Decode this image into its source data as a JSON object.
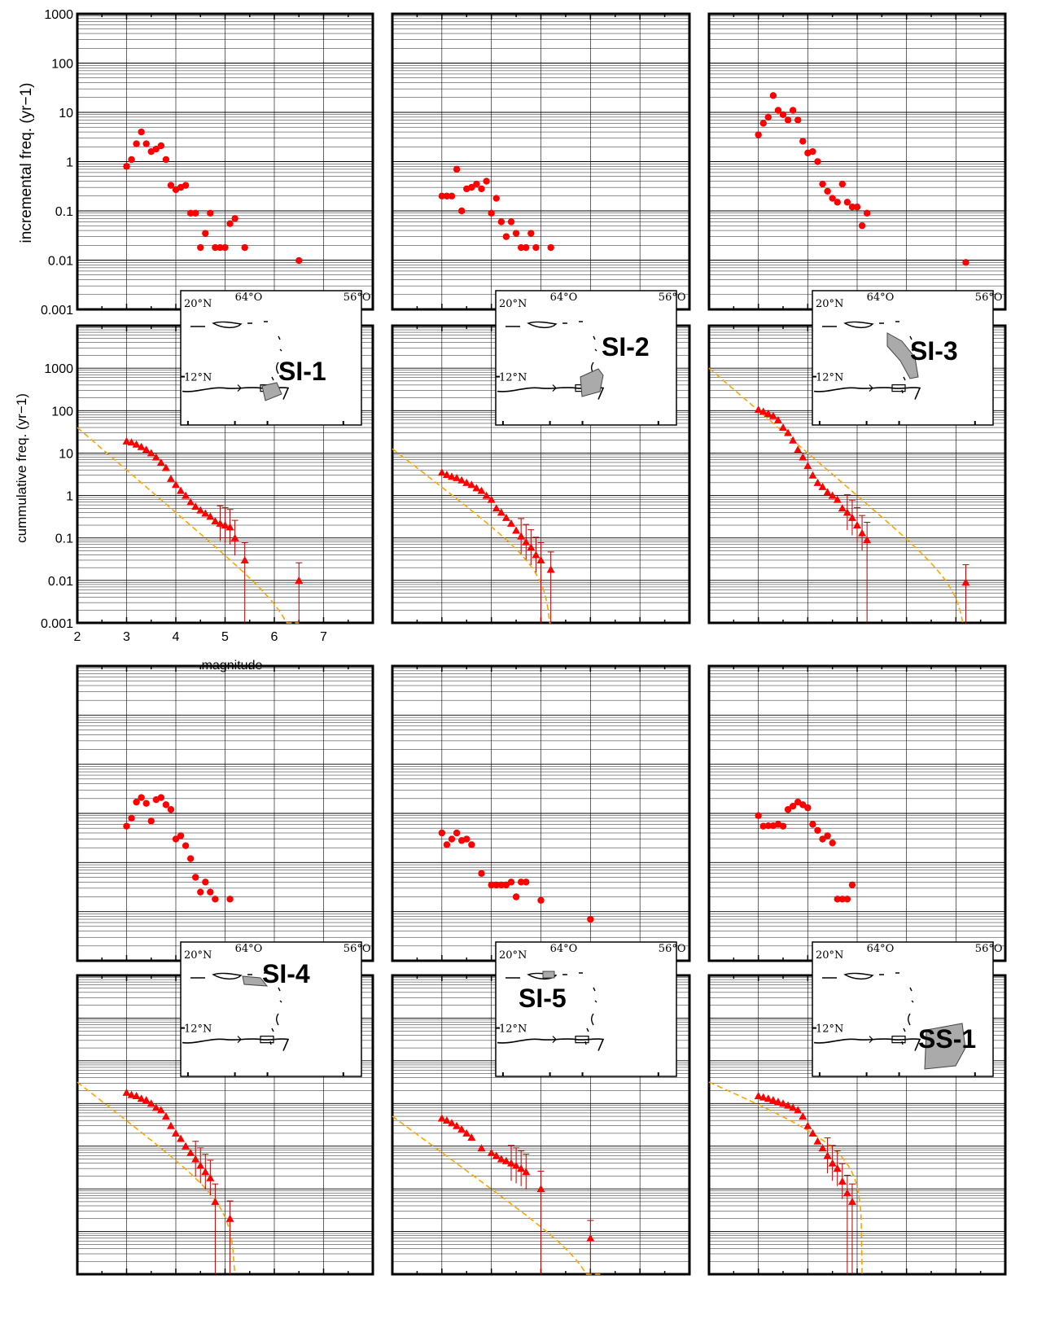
{
  "figure": {
    "ylabel_incremental": "incremental freq. (yr−1)",
    "ylabel_cumulative": "cummulative freq. (yr−1)",
    "xlabel": "magnitude"
  },
  "map_labels": {
    "lat_n": "20°N",
    "lat_s": "12°N",
    "lon_w": "64°O",
    "lon_e": "56°O"
  },
  "colors": {
    "points": "#ff0000",
    "fit": "#ffa500",
    "zone_fill": "#aaaaaa",
    "grid": "#000000"
  },
  "chart_data": [
    {
      "zone": "SI-1",
      "incremental": {
        "type": "scatter",
        "xlim": [
          2,
          8
        ],
        "ylim": [
          0.001,
          1000
        ],
        "yscale": "log",
        "yticklabels": [
          "1000",
          "100",
          "10",
          "1",
          "0.1",
          "0.01",
          "0.001"
        ],
        "x": [
          3.0,
          3.1,
          3.2,
          3.3,
          3.4,
          3.5,
          3.6,
          3.7,
          3.8,
          3.9,
          4.0,
          4.1,
          4.2,
          4.3,
          4.4,
          4.5,
          4.6,
          4.7,
          4.8,
          4.9,
          5.0,
          5.1,
          5.2,
          5.4,
          6.5
        ],
        "y": [
          0.8,
          1.1,
          2.3,
          4.0,
          2.3,
          1.6,
          1.8,
          2.1,
          1.1,
          0.33,
          0.27,
          0.3,
          0.33,
          0.09,
          0.09,
          0.018,
          0.035,
          0.09,
          0.018,
          0.018,
          0.018,
          0.055,
          0.07,
          0.018,
          0.0098
        ]
      },
      "cumulative": {
        "type": "scatter",
        "xlim": [
          2,
          8
        ],
        "ylim": [
          0.001,
          10000
        ],
        "yscale": "log",
        "xticklabels": [
          "2",
          "3",
          "4",
          "5",
          "6",
          "7"
        ],
        "yticklabels": [
          "1000",
          "100",
          "10",
          "1",
          "0.1",
          "0.01",
          "0.001"
        ],
        "x": [
          3.0,
          3.1,
          3.2,
          3.3,
          3.4,
          3.5,
          3.6,
          3.7,
          3.8,
          3.9,
          4.0,
          4.1,
          4.2,
          4.3,
          4.4,
          4.5,
          4.6,
          4.7,
          4.8,
          4.9,
          5.0,
          5.1,
          5.2,
          5.4,
          6.5
        ],
        "y": [
          19,
          18,
          16,
          14,
          12,
          10,
          8,
          6,
          4.5,
          2.5,
          1.8,
          1.3,
          1.0,
          0.7,
          0.55,
          0.45,
          0.38,
          0.32,
          0.25,
          0.22,
          0.2,
          0.18,
          0.1,
          0.03,
          0.01
        ],
        "err_hi": [
          0.03,
          0.03
        ],
        "fit": {
          "a": 3.6,
          "b": 1.0,
          "mmax": 6.5
        }
      }
    },
    {
      "zone": "SI-2",
      "incremental": {
        "type": "scatter",
        "xlim": [
          2,
          8
        ],
        "ylim": [
          0.001,
          1000
        ],
        "yscale": "log",
        "x": [
          3.0,
          3.1,
          3.2,
          3.3,
          3.4,
          3.5,
          3.6,
          3.7,
          3.8,
          3.9,
          4.0,
          4.1,
          4.2,
          4.3,
          4.4,
          4.5,
          4.6,
          4.7,
          4.8,
          4.9,
          5.2
        ],
        "y": [
          0.2,
          0.2,
          0.2,
          0.7,
          0.1,
          0.28,
          0.3,
          0.35,
          0.28,
          0.4,
          0.09,
          0.18,
          0.06,
          0.03,
          0.06,
          0.035,
          0.018,
          0.018,
          0.035,
          0.018,
          0.018
        ]
      },
      "cumulative": {
        "type": "scatter",
        "xlim": [
          2,
          8
        ],
        "ylim": [
          0.001,
          10000
        ],
        "yscale": "log",
        "x": [
          3.0,
          3.1,
          3.2,
          3.3,
          3.4,
          3.5,
          3.6,
          3.7,
          3.8,
          3.9,
          4.0,
          4.1,
          4.2,
          4.3,
          4.4,
          4.5,
          4.6,
          4.7,
          4.8,
          4.9,
          5.0,
          5.2
        ],
        "y": [
          3.5,
          3.1,
          2.8,
          2.6,
          2.3,
          2.0,
          1.8,
          1.5,
          1.3,
          1.0,
          0.8,
          0.5,
          0.4,
          0.3,
          0.22,
          0.15,
          0.11,
          0.08,
          0.06,
          0.04,
          0.03,
          0.018
        ],
        "fit": {
          "a": 2.9,
          "b": 0.9,
          "mmax": 5.2
        }
      }
    },
    {
      "zone": "SI-3",
      "incremental": {
        "type": "scatter",
        "xlim": [
          2,
          8
        ],
        "ylim": [
          0.001,
          1000
        ],
        "yscale": "log",
        "x": [
          3.0,
          3.1,
          3.2,
          3.3,
          3.4,
          3.5,
          3.6,
          3.7,
          3.8,
          3.9,
          4.0,
          4.1,
          4.2,
          4.3,
          4.4,
          4.5,
          4.6,
          4.7,
          4.8,
          4.9,
          5.0,
          5.1,
          5.2,
          7.2
        ],
        "y": [
          3.5,
          6,
          8,
          22,
          11,
          9,
          7,
          11,
          7,
          2.6,
          1.5,
          1.6,
          1.0,
          0.35,
          0.25,
          0.18,
          0.15,
          0.35,
          0.15,
          0.12,
          0.12,
          0.05,
          0.09,
          0.009
        ]
      },
      "cumulative": {
        "type": "scatter",
        "xlim": [
          2,
          8
        ],
        "ylim": [
          0.001,
          10000
        ],
        "yscale": "log",
        "x": [
          3.0,
          3.1,
          3.2,
          3.3,
          3.4,
          3.5,
          3.6,
          3.7,
          3.8,
          3.9,
          4.0,
          4.1,
          4.2,
          4.3,
          4.4,
          4.5,
          4.6,
          4.7,
          4.8,
          4.9,
          5.0,
          5.1,
          5.2,
          7.2
        ],
        "y": [
          105,
          95,
          85,
          75,
          60,
          40,
          30,
          20,
          12,
          8,
          5,
          3,
          2,
          1.6,
          1.2,
          1.0,
          0.8,
          0.5,
          0.4,
          0.3,
          0.2,
          0.13,
          0.09,
          0.009
        ],
        "fit": {
          "a": 5.0,
          "b": 1.0,
          "mmax": 7.2
        }
      }
    },
    {
      "zone": "SI-4",
      "incremental": {
        "type": "scatter",
        "xlim": [
          2,
          8
        ],
        "ylim": [
          0.001,
          1000
        ],
        "yscale": "log",
        "x": [
          3.0,
          3.1,
          3.2,
          3.3,
          3.4,
          3.5,
          3.6,
          3.7,
          3.8,
          3.9,
          4.0,
          4.1,
          4.2,
          4.3,
          4.4,
          4.5,
          4.6,
          4.7,
          4.8,
          5.1
        ],
        "y": [
          0.55,
          0.8,
          1.7,
          2.1,
          1.6,
          0.7,
          1.9,
          2.1,
          1.5,
          1.2,
          0.3,
          0.35,
          0.22,
          0.12,
          0.05,
          0.025,
          0.04,
          0.025,
          0.018,
          0.018
        ]
      },
      "cumulative": {
        "type": "scatter",
        "xlim": [
          2,
          8
        ],
        "ylim": [
          0.001,
          10000
        ],
        "yscale": "log",
        "x": [
          3.0,
          3.1,
          3.2,
          3.3,
          3.4,
          3.5,
          3.6,
          3.7,
          3.8,
          3.9,
          4.0,
          4.1,
          4.2,
          4.3,
          4.4,
          4.5,
          4.6,
          4.7,
          4.8,
          5.1
        ],
        "y": [
          18,
          16,
          15,
          13,
          12,
          10,
          8,
          7,
          5,
          3,
          2,
          1.5,
          1.0,
          0.7,
          0.5,
          0.35,
          0.25,
          0.18,
          0.05,
          0.02
        ],
        "fit": {
          "a": 3.3,
          "b": 0.9,
          "mmax": 5.2
        }
      }
    },
    {
      "zone": "SI-5",
      "incremental": {
        "type": "scatter",
        "xlim": [
          2,
          8
        ],
        "ylim": [
          0.001,
          1000
        ],
        "yscale": "log",
        "x": [
          3.0,
          3.1,
          3.2,
          3.3,
          3.4,
          3.5,
          3.6,
          3.8,
          4.0,
          4.1,
          4.2,
          4.3,
          4.4,
          4.5,
          4.6,
          4.7,
          5.0,
          6.0
        ],
        "y": [
          0.4,
          0.23,
          0.3,
          0.4,
          0.28,
          0.3,
          0.23,
          0.06,
          0.035,
          0.035,
          0.035,
          0.035,
          0.04,
          0.02,
          0.04,
          0.04,
          0.017,
          0.007
        ]
      },
      "cumulative": {
        "type": "scatter",
        "xlim": [
          2,
          8
        ],
        "ylim": [
          0.001,
          10000
        ],
        "yscale": "log",
        "x": [
          3.0,
          3.1,
          3.2,
          3.3,
          3.4,
          3.5,
          3.6,
          3.8,
          4.0,
          4.1,
          4.2,
          4.3,
          4.4,
          4.5,
          4.6,
          4.7,
          5.0,
          6.0
        ],
        "y": [
          4.5,
          4.0,
          3.5,
          3.0,
          2.5,
          2.0,
          1.6,
          0.9,
          0.7,
          0.6,
          0.5,
          0.45,
          0.4,
          0.35,
          0.3,
          0.25,
          0.1,
          0.007
        ],
        "fit": {
          "a": 2.4,
          "b": 0.85,
          "mmax": 6.2
        }
      }
    },
    {
      "zone": "SS-1",
      "incremental": {
        "type": "scatter",
        "xlim": [
          2,
          8
        ],
        "ylim": [
          0.001,
          1000
        ],
        "yscale": "log",
        "x": [
          3.0,
          3.1,
          3.2,
          3.3,
          3.4,
          3.5,
          3.6,
          3.7,
          3.8,
          3.9,
          4.0,
          4.1,
          4.2,
          4.3,
          4.4,
          4.5,
          4.6,
          4.7,
          4.8,
          4.9
        ],
        "y": [
          0.9,
          0.55,
          0.56,
          0.56,
          0.6,
          0.55,
          1.2,
          1.4,
          1.7,
          1.5,
          1.3,
          0.6,
          0.45,
          0.3,
          0.35,
          0.25,
          0.018,
          0.018,
          0.018,
          0.035
        ]
      },
      "cumulative": {
        "type": "scatter",
        "xlim": [
          2,
          8
        ],
        "ylim": [
          0.001,
          10000
        ],
        "yscale": "log",
        "x": [
          3.0,
          3.1,
          3.2,
          3.3,
          3.4,
          3.5,
          3.6,
          3.7,
          3.8,
          3.9,
          4.0,
          4.1,
          4.2,
          4.3,
          4.4,
          4.5,
          4.6,
          4.7,
          4.8,
          4.9
        ],
        "y": [
          15,
          14,
          13,
          12,
          11,
          10,
          9,
          8,
          7,
          5,
          3,
          2,
          1.3,
          0.9,
          0.6,
          0.4,
          0.3,
          0.15,
          0.08,
          0.05
        ],
        "fit": {
          "a": 2.5,
          "b": 0.5,
          "mmax": 5.1
        }
      }
    }
  ]
}
